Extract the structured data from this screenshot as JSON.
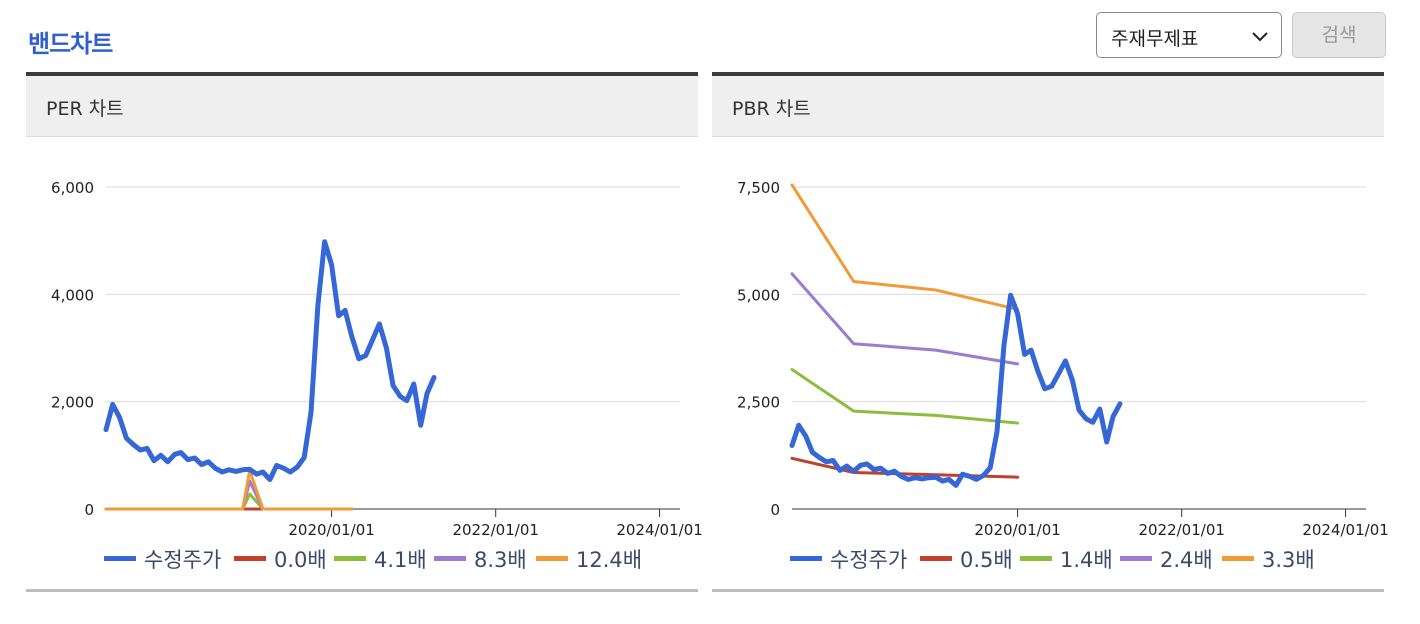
{
  "header": {
    "title": "밴드차트"
  },
  "controls": {
    "select_value": "주재무제표",
    "search_label": "검색"
  },
  "colors": {
    "price": "#3567d6",
    "band0": "#c0402b",
    "band1": "#8bbe3c",
    "band2": "#9d7bd1",
    "band3": "#f29a38"
  },
  "chart_data": [
    {
      "type": "line",
      "title": "PER 차트",
      "ylim": [
        0,
        6000
      ],
      "yticks": [
        0,
        2000,
        4000,
        6000
      ],
      "ytick_labels": [
        "0",
        "2,000",
        "4,000",
        "6,000"
      ],
      "xlim": [
        "2017/04/01",
        "2024/04/01"
      ],
      "xtick_labels": [
        "2020/01/01",
        "2022/01/01",
        "2024/01/01"
      ],
      "xticks": [
        "2020/01/01",
        "2022/01/01",
        "2024/01/01"
      ],
      "grid": true,
      "legend_position": "bottom",
      "series": [
        {
          "name": "수정주가",
          "points": [
            [
              "2017/04/01",
              1480
            ],
            [
              "2017/05/01",
              1950
            ],
            [
              "2017/06/01",
              1700
            ],
            [
              "2017/07/01",
              1320
            ],
            [
              "2017/08/01",
              1200
            ],
            [
              "2017/09/01",
              1100
            ],
            [
              "2017/10/01",
              1130
            ],
            [
              "2017/11/01",
              900
            ],
            [
              "2017/12/01",
              1000
            ],
            [
              "2018/01/01",
              880
            ],
            [
              "2018/02/01",
              1020
            ],
            [
              "2018/03/01",
              1050
            ],
            [
              "2018/04/01",
              920
            ],
            [
              "2018/05/01",
              950
            ],
            [
              "2018/06/01",
              830
            ],
            [
              "2018/07/01",
              880
            ],
            [
              "2018/08/01",
              760
            ],
            [
              "2018/09/01",
              690
            ],
            [
              "2018/10/01",
              730
            ],
            [
              "2018/11/01",
              700
            ],
            [
              "2018/12/01",
              730
            ],
            [
              "2019/01/01",
              740
            ],
            [
              "2019/02/01",
              650
            ],
            [
              "2019/03/01",
              690
            ],
            [
              "2019/04/01",
              550
            ],
            [
              "2019/05/01",
              810
            ],
            [
              "2019/06/01",
              760
            ],
            [
              "2019/07/01",
              690
            ],
            [
              "2019/08/01",
              780
            ],
            [
              "2019/09/01",
              960
            ],
            [
              "2019/10/01",
              1800
            ],
            [
              "2019/11/01",
              3800
            ],
            [
              "2019/12/01",
              4980
            ],
            [
              "2020/01/01",
              4550
            ],
            [
              "2020/02/01",
              3600
            ],
            [
              "2020/03/01",
              3700
            ],
            [
              "2020/04/01",
              3200
            ],
            [
              "2020/05/01",
              2800
            ],
            [
              "2020/06/01",
              2860
            ],
            [
              "2020/07/01",
              3150
            ],
            [
              "2020/08/01",
              3450
            ],
            [
              "2020/09/01",
              3000
            ],
            [
              "2020/10/01",
              2300
            ],
            [
              "2020/11/01",
              2100
            ],
            [
              "2020/12/01",
              2020
            ],
            [
              "2021/01/01",
              2330
            ],
            [
              "2021/02/01",
              1560
            ],
            [
              "2021/03/01",
              2150
            ],
            [
              "2021/04/01",
              2450
            ]
          ]
        },
        {
          "name": "0.0배",
          "points": [
            [
              "2017/04/01",
              0
            ],
            [
              "2019/01/01",
              0
            ],
            [
              "2019/03/01",
              0
            ],
            [
              "2020/04/01",
              0
            ]
          ]
        },
        {
          "name": "4.1배",
          "points": [
            [
              "2017/04/01",
              0
            ],
            [
              "2018/12/01",
              0
            ],
            [
              "2019/01/01",
              280
            ],
            [
              "2019/03/01",
              0
            ],
            [
              "2020/04/01",
              0
            ]
          ]
        },
        {
          "name": "8.3배",
          "points": [
            [
              "2017/04/01",
              0
            ],
            [
              "2018/12/01",
              0
            ],
            [
              "2019/01/01",
              520
            ],
            [
              "2019/03/01",
              0
            ],
            [
              "2020/04/01",
              0
            ]
          ]
        },
        {
          "name": "12.4배",
          "points": [
            [
              "2017/04/01",
              0
            ],
            [
              "2018/12/01",
              0
            ],
            [
              "2019/01/01",
              720
            ],
            [
              "2019/03/01",
              0
            ],
            [
              "2020/04/01",
              0
            ]
          ]
        }
      ]
    },
    {
      "type": "line",
      "title": "PBR 차트",
      "ylim": [
        0,
        7500
      ],
      "yticks": [
        0,
        2500,
        5000,
        7500
      ],
      "ytick_labels": [
        "0",
        "2,500",
        "5,000",
        "7,500"
      ],
      "xlim": [
        "2017/04/01",
        "2024/04/01"
      ],
      "xtick_labels": [
        "2020/01/01",
        "2022/01/01",
        "2024/01/01"
      ],
      "xticks": [
        "2020/01/01",
        "2022/01/01",
        "2024/01/01"
      ],
      "grid": true,
      "legend_position": "bottom",
      "series": [
        {
          "name": "수정주가",
          "points": [
            [
              "2017/04/01",
              1480
            ],
            [
              "2017/05/01",
              1950
            ],
            [
              "2017/06/01",
              1700
            ],
            [
              "2017/07/01",
              1320
            ],
            [
              "2017/08/01",
              1200
            ],
            [
              "2017/09/01",
              1100
            ],
            [
              "2017/10/01",
              1130
            ],
            [
              "2017/11/01",
              900
            ],
            [
              "2017/12/01",
              1000
            ],
            [
              "2018/01/01",
              880
            ],
            [
              "2018/02/01",
              1020
            ],
            [
              "2018/03/01",
              1050
            ],
            [
              "2018/04/01",
              920
            ],
            [
              "2018/05/01",
              950
            ],
            [
              "2018/06/01",
              830
            ],
            [
              "2018/07/01",
              880
            ],
            [
              "2018/08/01",
              760
            ],
            [
              "2018/09/01",
              690
            ],
            [
              "2018/10/01",
              730
            ],
            [
              "2018/11/01",
              700
            ],
            [
              "2018/12/01",
              730
            ],
            [
              "2019/01/01",
              740
            ],
            [
              "2019/02/01",
              650
            ],
            [
              "2019/03/01",
              690
            ],
            [
              "2019/04/01",
              550
            ],
            [
              "2019/05/01",
              810
            ],
            [
              "2019/06/01",
              760
            ],
            [
              "2019/07/01",
              690
            ],
            [
              "2019/08/01",
              780
            ],
            [
              "2019/09/01",
              960
            ],
            [
              "2019/10/01",
              1800
            ],
            [
              "2019/11/01",
              3800
            ],
            [
              "2019/12/01",
              4980
            ],
            [
              "2020/01/01",
              4550
            ],
            [
              "2020/02/01",
              3600
            ],
            [
              "2020/03/01",
              3700
            ],
            [
              "2020/04/01",
              3200
            ],
            [
              "2020/05/01",
              2800
            ],
            [
              "2020/06/01",
              2860
            ],
            [
              "2020/07/01",
              3150
            ],
            [
              "2020/08/01",
              3450
            ],
            [
              "2020/09/01",
              3000
            ],
            [
              "2020/10/01",
              2300
            ],
            [
              "2020/11/01",
              2100
            ],
            [
              "2020/12/01",
              2020
            ],
            [
              "2021/01/01",
              2330
            ],
            [
              "2021/02/01",
              1560
            ],
            [
              "2021/03/01",
              2150
            ],
            [
              "2021/04/01",
              2450
            ]
          ]
        },
        {
          "name": "0.5배",
          "points": [
            [
              "2017/04/01",
              1180
            ],
            [
              "2018/01/01",
              850
            ],
            [
              "2019/01/01",
              800
            ],
            [
              "2020/01/01",
              740
            ]
          ]
        },
        {
          "name": "1.4배",
          "points": [
            [
              "2017/04/01",
              3250
            ],
            [
              "2018/01/01",
              2280
            ],
            [
              "2019/01/01",
              2180
            ],
            [
              "2020/01/01",
              2000
            ]
          ]
        },
        {
          "name": "2.4배",
          "points": [
            [
              "2017/04/01",
              5480
            ],
            [
              "2018/01/01",
              3850
            ],
            [
              "2019/01/01",
              3700
            ],
            [
              "2020/01/01",
              3380
            ]
          ]
        },
        {
          "name": "3.3배",
          "points": [
            [
              "2017/04/01",
              7550
            ],
            [
              "2018/01/01",
              5300
            ],
            [
              "2019/01/01",
              5100
            ],
            [
              "2020/01/01",
              4650
            ]
          ]
        }
      ]
    }
  ]
}
